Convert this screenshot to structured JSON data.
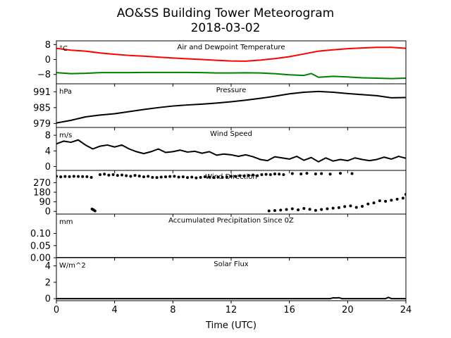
{
  "figure": {
    "title_line1": "AO&SS Building Tower Meteorogram",
    "title_line2": "2018-03-02",
    "xlabel": "Time (UTC)",
    "xlim": [
      0,
      24
    ],
    "x_ticks": [
      0,
      4,
      8,
      12,
      16,
      20,
      24
    ],
    "x_tick_labels": [
      "0",
      "4",
      "8",
      "12",
      "16",
      "20",
      "24"
    ]
  },
  "colors": {
    "temperature": "#ff0000",
    "dewpoint": "#008000",
    "line": "#000000"
  },
  "chart_data": [
    {
      "type": "line",
      "title": "Air and Dewpoint Temperature",
      "unit": "°C",
      "ylim": [
        -13,
        10
      ],
      "y_ticks": [
        -8,
        0,
        8
      ],
      "y_tick_labels": [
        "−8",
        "0",
        "8"
      ],
      "series": [
        {
          "color_key": "temperature",
          "x": [
            0,
            1,
            2,
            3,
            4,
            5,
            6,
            7,
            8,
            9,
            10,
            11,
            12,
            13,
            14,
            15,
            16,
            17,
            18,
            19,
            20,
            21,
            22,
            23,
            24
          ],
          "y": [
            6,
            5,
            4.5,
            3.5,
            2.8,
            2.2,
            1.8,
            1.3,
            0.8,
            0.4,
            0,
            -0.4,
            -0.8,
            -0.9,
            -0.3,
            0.5,
            1.5,
            3,
            4.5,
            5.2,
            5.8,
            6.2,
            6.5,
            6.5,
            6
          ]
        },
        {
          "color_key": "dewpoint",
          "x": [
            0,
            1,
            2,
            3,
            4,
            5,
            6,
            7,
            8,
            9,
            10,
            11,
            12,
            13,
            14,
            15,
            16,
            17,
            17.5,
            18,
            19,
            20,
            21,
            22,
            23,
            24
          ],
          "y": [
            -7,
            -7.6,
            -7.4,
            -7,
            -7,
            -7,
            -6.9,
            -6.9,
            -6.9,
            -6.9,
            -7,
            -7.2,
            -7.2,
            -7.1,
            -7.2,
            -7.6,
            -8.2,
            -8.5,
            -7.5,
            -9.5,
            -9,
            -9.3,
            -9.8,
            -10,
            -10.2,
            -10
          ]
        }
      ]
    },
    {
      "type": "line",
      "title": "Pressure",
      "unit": "hPa",
      "ylim": [
        977.5,
        994
      ],
      "y_ticks": [
        979,
        985,
        991
      ],
      "y_tick_labels": [
        "979",
        "985",
        "991"
      ],
      "series": [
        {
          "color_key": "line",
          "x": [
            0,
            1,
            2,
            3,
            4,
            5,
            6,
            7,
            8,
            9,
            10,
            11,
            12,
            13,
            14,
            15,
            16,
            17,
            18,
            19,
            20,
            21,
            22,
            23,
            24
          ],
          "y": [
            979.2,
            980.2,
            981.5,
            982.2,
            982.7,
            983.5,
            984.3,
            985,
            985.6,
            986,
            986.3,
            986.7,
            987.2,
            987.8,
            988.5,
            989.3,
            990.2,
            990.8,
            991.1,
            990.8,
            990.3,
            989.9,
            989.5,
            988.7,
            988.8
          ]
        }
      ]
    },
    {
      "type": "line",
      "title": "Wind Speed",
      "unit": "m/s",
      "ylim": [
        -1,
        10
      ],
      "y_ticks": [
        0,
        4,
        8
      ],
      "y_tick_labels": [
        "0",
        "4",
        "8"
      ],
      "series": [
        {
          "color_key": "line",
          "x": [
            0,
            0.5,
            1,
            1.5,
            2,
            2.5,
            3,
            3.5,
            4,
            4.5,
            5,
            5.5,
            6,
            6.5,
            7,
            7.5,
            8,
            8.5,
            9,
            9.5,
            10,
            10.5,
            11,
            11.5,
            12,
            12.5,
            13,
            13.5,
            14,
            14.5,
            15,
            15.5,
            16,
            16.5,
            17,
            17.5,
            18,
            18.5,
            19,
            19.5,
            20,
            20.5,
            21,
            21.5,
            22,
            22.5,
            23,
            23.5,
            24
          ],
          "y": [
            5.8,
            6.5,
            6.2,
            6.8,
            5.5,
            4.5,
            5.2,
            5.5,
            5,
            5.5,
            4.5,
            3.8,
            3.3,
            3.8,
            4.5,
            3.6,
            3.8,
            4.2,
            3.7,
            3.9,
            3.4,
            3.8,
            2.9,
            3.2,
            3,
            2.6,
            3,
            2.5,
            1.8,
            1.5,
            2.5,
            2.2,
            1.9,
            2.6,
            1.6,
            2.3,
            1.2,
            2.2,
            1.4,
            1.8,
            1.5,
            2.2,
            1.8,
            1.5,
            1.8,
            2.4,
            1.9,
            2.6,
            2.1
          ]
        }
      ]
    },
    {
      "type": "scatter",
      "title": "Wind Direction",
      "unit": "",
      "ylim": [
        -25,
        385
      ],
      "y_ticks": [
        0,
        90,
        180,
        270
      ],
      "y_tick_labels": [
        "0",
        "90",
        "180",
        "270"
      ],
      "series": [
        {
          "color_key": "line",
          "x": [
            0,
            0.3,
            0.6,
            0.9,
            1.2,
            1.5,
            1.8,
            2.1,
            2.4,
            2.45,
            2.55,
            2.65,
            3,
            3.3,
            3.6,
            3.9,
            4.2,
            4.5,
            4.8,
            5.1,
            5.4,
            5.7,
            6,
            6.3,
            6.6,
            6.9,
            7.2,
            7.5,
            7.8,
            8.1,
            8.4,
            8.7,
            9,
            9.3,
            9.6,
            9.9,
            10.2,
            10.5,
            10.8,
            11.1,
            11.4,
            11.7,
            12,
            12.3,
            12.6,
            12.9,
            13.2,
            13.5,
            13.8,
            14.1,
            14.4,
            14.7,
            15,
            15.3,
            15.6,
            16.2,
            16.8,
            17.2,
            17.8,
            18.2,
            18.8,
            19.5,
            20.3,
            14.6,
            15,
            15.4,
            15.8,
            16.2,
            16.6,
            17,
            17.4,
            17.8,
            18.2,
            18.6,
            19,
            19.4,
            19.8,
            20.2,
            20.6,
            21,
            21.4,
            21.8,
            22.2,
            22.6,
            23,
            23.4,
            23.8,
            24
          ],
          "y": [
            330,
            325,
            328,
            326,
            330,
            328,
            327,
            326,
            320,
            22,
            15,
            5,
            345,
            350,
            340,
            345,
            338,
            342,
            335,
            330,
            338,
            332,
            325,
            330,
            320,
            318,
            322,
            325,
            328,
            330,
            322,
            325,
            318,
            322,
            315,
            320,
            325,
            322,
            318,
            322,
            320,
            325,
            330,
            328,
            335,
            332,
            338,
            342,
            335,
            345,
            348,
            345,
            352,
            350,
            345,
            355,
            352,
            358,
            352,
            355,
            350,
            358,
            355,
            5,
            8,
            12,
            18,
            25,
            15,
            28,
            20,
            10,
            18,
            25,
            30,
            35,
            45,
            52,
            38,
            48,
            70,
            80,
            100,
            95,
            105,
            115,
            125,
            160
          ]
        }
      ]
    },
    {
      "type": "line",
      "title": "Accumulated Precipitation Since 0Z",
      "unit": "mm",
      "ylim": [
        0,
        0.18
      ],
      "y_ticks": [
        0,
        0.05,
        0.1
      ],
      "y_tick_labels": [
        "0.00",
        "0.05",
        "0.10"
      ],
      "series": [
        {
          "color_key": "line",
          "x": [
            0,
            24
          ],
          "y": [
            0,
            0
          ]
        }
      ]
    },
    {
      "type": "line",
      "title": "Solar Flux",
      "unit": "W/m^2",
      "ylim": [
        -0.25,
        5
      ],
      "y_ticks": [
        0,
        2,
        4
      ],
      "y_tick_labels": [
        "0",
        "2",
        "4"
      ],
      "series": [
        {
          "color_key": "line",
          "x": [
            0,
            18.8,
            19,
            19.2,
            19.4,
            19.6,
            22.6,
            22.8,
            23,
            24
          ],
          "y": [
            0,
            0,
            0.1,
            0.08,
            0.12,
            0,
            0,
            0.15,
            0,
            0
          ]
        }
      ]
    }
  ]
}
